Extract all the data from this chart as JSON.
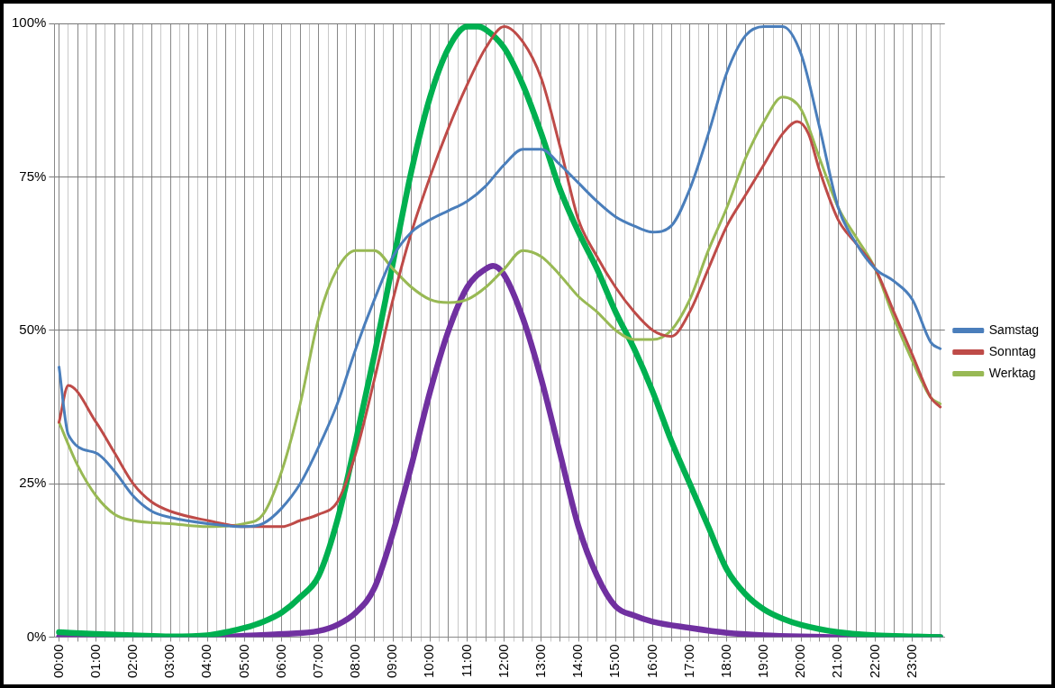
{
  "chart_data": {
    "type": "line",
    "xlim": [
      -0.125,
      23.875
    ],
    "xticks": [
      {
        "value": 0,
        "label": "00:00"
      },
      {
        "value": 0.25,
        "label": null
      },
      {
        "value": 0.5,
        "label": null
      },
      {
        "value": 0.75,
        "label": null
      },
      {
        "value": 1,
        "label": "01:00"
      },
      {
        "value": 1.25,
        "label": null
      },
      {
        "value": 1.5,
        "label": null
      },
      {
        "value": 1.75,
        "label": null
      },
      {
        "value": 2,
        "label": "02:00"
      },
      {
        "value": 2.25,
        "label": null
      },
      {
        "value": 2.5,
        "label": null
      },
      {
        "value": 2.75,
        "label": null
      },
      {
        "value": 3,
        "label": "03:00"
      },
      {
        "value": 3.25,
        "label": null
      },
      {
        "value": 3.5,
        "label": null
      },
      {
        "value": 3.75,
        "label": null
      },
      {
        "value": 4,
        "label": "04:00"
      },
      {
        "value": 4.25,
        "label": null
      },
      {
        "value": 4.5,
        "label": null
      },
      {
        "value": 4.75,
        "label": null
      },
      {
        "value": 5,
        "label": "05:00"
      },
      {
        "value": 5.25,
        "label": null
      },
      {
        "value": 5.5,
        "label": null
      },
      {
        "value": 5.75,
        "label": null
      },
      {
        "value": 6,
        "label": "06:00"
      },
      {
        "value": 6.25,
        "label": null
      },
      {
        "value": 6.5,
        "label": null
      },
      {
        "value": 6.75,
        "label": null
      },
      {
        "value": 7,
        "label": "07:00"
      },
      {
        "value": 7.25,
        "label": null
      },
      {
        "value": 7.5,
        "label": null
      },
      {
        "value": 7.75,
        "label": null
      },
      {
        "value": 8,
        "label": "08:00"
      },
      {
        "value": 8.25,
        "label": null
      },
      {
        "value": 8.5,
        "label": null
      },
      {
        "value": 8.75,
        "label": null
      },
      {
        "value": 9,
        "label": "09:00"
      },
      {
        "value": 9.25,
        "label": null
      },
      {
        "value": 9.5,
        "label": null
      },
      {
        "value": 9.75,
        "label": null
      },
      {
        "value": 10,
        "label": "10:00"
      },
      {
        "value": 10.25,
        "label": null
      },
      {
        "value": 10.5,
        "label": null
      },
      {
        "value": 10.75,
        "label": null
      },
      {
        "value": 11,
        "label": "11:00"
      },
      {
        "value": 11.25,
        "label": null
      },
      {
        "value": 11.5,
        "label": null
      },
      {
        "value": 11.75,
        "label": null
      },
      {
        "value": 12,
        "label": "12:00"
      },
      {
        "value": 12.25,
        "label": null
      },
      {
        "value": 12.5,
        "label": null
      },
      {
        "value": 12.75,
        "label": null
      },
      {
        "value": 13,
        "label": "13:00"
      },
      {
        "value": 13.25,
        "label": null
      },
      {
        "value": 13.5,
        "label": null
      },
      {
        "value": 13.75,
        "label": null
      },
      {
        "value": 14,
        "label": "14:00"
      },
      {
        "value": 14.25,
        "label": null
      },
      {
        "value": 14.5,
        "label": null
      },
      {
        "value": 14.75,
        "label": null
      },
      {
        "value": 15,
        "label": "15:00"
      },
      {
        "value": 15.25,
        "label": null
      },
      {
        "value": 15.5,
        "label": null
      },
      {
        "value": 15.75,
        "label": null
      },
      {
        "value": 16,
        "label": "16:00"
      },
      {
        "value": 16.25,
        "label": null
      },
      {
        "value": 16.5,
        "label": null
      },
      {
        "value": 16.75,
        "label": null
      },
      {
        "value": 17,
        "label": "17:00"
      },
      {
        "value": 17.25,
        "label": null
      },
      {
        "value": 17.5,
        "label": null
      },
      {
        "value": 17.75,
        "label": null
      },
      {
        "value": 18,
        "label": "18:00"
      },
      {
        "value": 18.25,
        "label": null
      },
      {
        "value": 18.5,
        "label": null
      },
      {
        "value": 18.75,
        "label": null
      },
      {
        "value": 19,
        "label": "19:00"
      },
      {
        "value": 19.25,
        "label": null
      },
      {
        "value": 19.5,
        "label": null
      },
      {
        "value": 19.75,
        "label": null
      },
      {
        "value": 20,
        "label": "20:00"
      },
      {
        "value": 20.25,
        "label": null
      },
      {
        "value": 20.5,
        "label": null
      },
      {
        "value": 20.75,
        "label": null
      },
      {
        "value": 21,
        "label": "21:00"
      },
      {
        "value": 21.25,
        "label": null
      },
      {
        "value": 21.5,
        "label": null
      },
      {
        "value": 21.75,
        "label": null
      },
      {
        "value": 22,
        "label": "22:00"
      },
      {
        "value": 22.25,
        "label": null
      },
      {
        "value": 22.5,
        "label": null
      },
      {
        "value": 22.75,
        "label": null
      },
      {
        "value": 23,
        "label": "23:00"
      },
      {
        "value": 23.25,
        "label": null
      },
      {
        "value": 23.5,
        "label": null
      },
      {
        "value": 23.75,
        "label": null
      }
    ],
    "ylim": [
      0,
      100
    ],
    "yticks": [
      {
        "value": 0,
        "label": "0%"
      },
      {
        "value": 25,
        "label": "25%"
      },
      {
        "value": 50,
        "label": "50%"
      },
      {
        "value": 75,
        "label": "75%"
      },
      {
        "value": 100,
        "label": "100%"
      }
    ],
    "grid": true,
    "legend": "right",
    "marker": "none",
    "line_style": "solid",
    "series": [
      {
        "name": "Samstag",
        "color": "#4a7ebb",
        "x": [
          0,
          0.25,
          1,
          1.5,
          2,
          2.5,
          3,
          4,
          5,
          5.5,
          6,
          6.5,
          7,
          7.5,
          8,
          8.5,
          9,
          9.5,
          10,
          10.5,
          11,
          11.5,
          12,
          12.5,
          13,
          13.5,
          14,
          14.5,
          15,
          15.5,
          16,
          16.5,
          17,
          17.5,
          18,
          18.5,
          19,
          19.5,
          20,
          20.5,
          21,
          21.5,
          22,
          22.5,
          23,
          23.5,
          23.75
        ],
        "values": [
          44,
          33,
          30,
          27,
          23,
          20.5,
          19.5,
          18.5,
          18,
          18.5,
          21,
          25,
          31,
          38,
          47,
          55,
          62,
          66,
          68,
          69.5,
          71,
          73.5,
          77,
          79.5,
          79.5,
          77,
          74,
          71,
          68.5,
          67,
          66,
          67,
          73,
          82,
          92,
          98,
          99.5,
          99.5,
          95,
          83,
          70,
          64,
          60,
          58,
          55,
          48,
          47
        ]
      },
      {
        "name": "Sonntag",
        "color": "#be4b48",
        "x": [
          0,
          0.25,
          1,
          1.5,
          2,
          2.5,
          3,
          4,
          5,
          6,
          6.5,
          7,
          7.5,
          8,
          8.5,
          9,
          9.5,
          10,
          10.5,
          11,
          11.5,
          12,
          12.5,
          13,
          13.5,
          14,
          14.5,
          15,
          15.5,
          16,
          16.5,
          17,
          17.5,
          18,
          18.5,
          19,
          19.5,
          19.9,
          20.2,
          20.5,
          21,
          21.5,
          22,
          22.5,
          23,
          23.5,
          23.75
        ],
        "values": [
          35,
          41,
          35,
          30,
          25,
          22,
          20.5,
          19,
          18,
          18,
          19,
          20,
          22,
          30,
          42,
          55,
          66,
          75,
          83,
          90,
          96,
          99.5,
          97,
          91,
          80,
          68,
          62,
          57,
          53,
          50,
          49,
          53,
          60,
          67,
          72,
          77,
          82,
          84,
          82,
          76,
          68,
          64,
          60,
          53,
          46,
          39,
          37.5
        ]
      },
      {
        "name": "Werktag",
        "color": "#98b954",
        "x": [
          0,
          0.5,
          1,
          1.5,
          2,
          3,
          4,
          5,
          5.5,
          6,
          6.5,
          7,
          7.5,
          8,
          8.5,
          9,
          9.5,
          10,
          10.5,
          11,
          11.5,
          12,
          12.5,
          13,
          13.5,
          14,
          14.5,
          15,
          15.5,
          16,
          16.5,
          17,
          17.5,
          18,
          18.5,
          19,
          19.5,
          20,
          20.5,
          21,
          21.5,
          22,
          22.5,
          23,
          23.5,
          23.75
        ],
        "values": [
          35,
          28,
          23,
          20,
          19,
          18.5,
          18,
          18.5,
          20,
          27,
          38,
          52,
          60,
          63,
          63,
          60,
          57,
          55,
          54.5,
          55,
          57,
          60,
          63,
          62,
          59,
          55.5,
          53,
          50,
          48.5,
          48.5,
          50,
          55,
          63,
          70,
          78,
          84,
          88,
          86,
          78,
          70,
          65,
          60,
          52,
          45,
          39,
          38
        ]
      },
      {
        "color": "#00b050",
        "x": [
          0,
          1,
          2,
          3,
          4,
          4.5,
          5,
          5.5,
          6,
          6.5,
          7,
          7.5,
          8,
          8.5,
          9,
          9.5,
          10,
          10.5,
          11,
          11.3,
          11.5,
          12,
          12.5,
          13,
          13.5,
          14,
          14.5,
          15,
          15.5,
          16,
          16.5,
          17,
          17.5,
          18,
          18.5,
          19,
          19.5,
          20,
          21,
          22,
          23,
          23.75
        ],
        "values": [
          0.8,
          0.5,
          0.3,
          0.1,
          0.3,
          0.8,
          1.5,
          2.5,
          4,
          6.5,
          10,
          19,
          32,
          46,
          61,
          76,
          88,
          96,
          99.5,
          99.5,
          99,
          96,
          90,
          82,
          73,
          66,
          60,
          53,
          47,
          40,
          32,
          25,
          18,
          11,
          7,
          4.5,
          3,
          2,
          0.8,
          0.3,
          0.1,
          0
        ]
      },
      {
        "color": "#7030a0",
        "x": [
          0,
          2,
          4,
          5,
          6,
          7,
          7.5,
          8,
          8.5,
          9,
          9.5,
          10,
          10.5,
          11,
          11.5,
          11.7,
          12,
          12.5,
          13,
          13.5,
          14,
          14.5,
          15,
          15.5,
          16,
          17,
          18,
          19,
          20,
          21,
          23.75
        ],
        "values": [
          0,
          0,
          0,
          0.2,
          0.5,
          1,
          2,
          4,
          8,
          17,
          28,
          40,
          50,
          57,
          60,
          60.5,
          59,
          52,
          42,
          30,
          18,
          10,
          5,
          3.5,
          2.5,
          1.5,
          0.7,
          0.3,
          0.1,
          0,
          0
        ]
      }
    ]
  }
}
